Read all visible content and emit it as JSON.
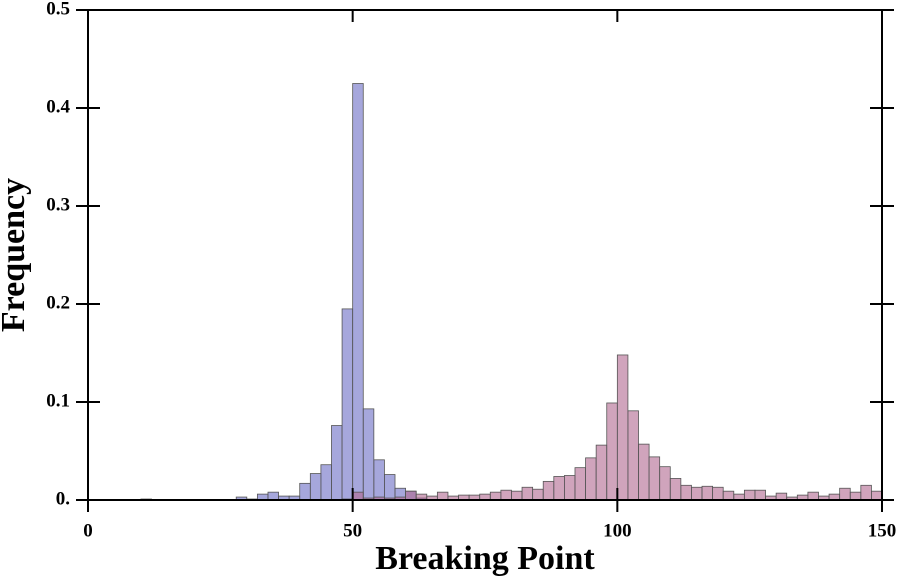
{
  "chart_data": {
    "type": "histogram",
    "xlabel": "Breaking Point",
    "ylabel": "Frequency",
    "bins": [
      0,
      2,
      4,
      6,
      8,
      10,
      12,
      14,
      16,
      18,
      20,
      22,
      24,
      26,
      28,
      30,
      32,
      34,
      36,
      38,
      40,
      42,
      44,
      46,
      48,
      50,
      52,
      54,
      56,
      58,
      60,
      62,
      64,
      66,
      68,
      70,
      72,
      74,
      76,
      78,
      80,
      82,
      84,
      86,
      88,
      90,
      92,
      94,
      96,
      98,
      100,
      102,
      104,
      106,
      108,
      110,
      112,
      114,
      116,
      118,
      120,
      122,
      124,
      126,
      128,
      130,
      132,
      134,
      136,
      138,
      140,
      142,
      144,
      146,
      148,
      150
    ],
    "series": [
      {
        "color": "#6a6cc4",
        "values": [
          0,
          0,
          0,
          0,
          0,
          0.001,
          0,
          0,
          0,
          0,
          0,
          0,
          0,
          0,
          0.003,
          0.001,
          0.006,
          0.008,
          0.004,
          0.004,
          0.017,
          0.027,
          0.036,
          0.076,
          0.195,
          0.425,
          0.093,
          0.041,
          0.026,
          0.012,
          0.009,
          0.002,
          0,
          0,
          0,
          0,
          0,
          0,
          0,
          0,
          0,
          0,
          0,
          0,
          0,
          0,
          0,
          0,
          0,
          0,
          0,
          0,
          0,
          0,
          0,
          0,
          0,
          0,
          0,
          0,
          0,
          0,
          0,
          0,
          0,
          0,
          0,
          0,
          0,
          0,
          0,
          0,
          0,
          0,
          0
        ]
      },
      {
        "color": "#b0678f",
        "values": [
          0,
          0,
          0,
          0,
          0,
          0,
          0,
          0,
          0,
          0,
          0,
          0,
          0,
          0,
          0,
          0,
          0,
          0,
          0,
          0,
          0,
          0,
          0,
          0,
          0.001,
          0.008,
          0.002,
          0.003,
          0.002,
          0.003,
          0.009,
          0.006,
          0.004,
          0.008,
          0.004,
          0.005,
          0.005,
          0.006,
          0.008,
          0.01,
          0.009,
          0.013,
          0.011,
          0.019,
          0.024,
          0.025,
          0.033,
          0.043,
          0.056,
          0.099,
          0.148,
          0.091,
          0.057,
          0.044,
          0.034,
          0.022,
          0.015,
          0.013,
          0.014,
          0.013,
          0.009,
          0.006,
          0.01,
          0.01,
          0.004,
          0.007,
          0.003,
          0.005,
          0.008,
          0.004,
          0.006,
          0.012,
          0.008,
          0.015,
          0.009
        ]
      }
    ],
    "xlim": [
      0,
      150
    ],
    "ylim": [
      0,
      0.5
    ],
    "xticks": [
      0,
      50,
      100,
      150
    ],
    "yticks": [
      {
        "value": 0,
        "label": "0."
      },
      0.1,
      0.2,
      0.3,
      0.4,
      0.5
    ]
  }
}
